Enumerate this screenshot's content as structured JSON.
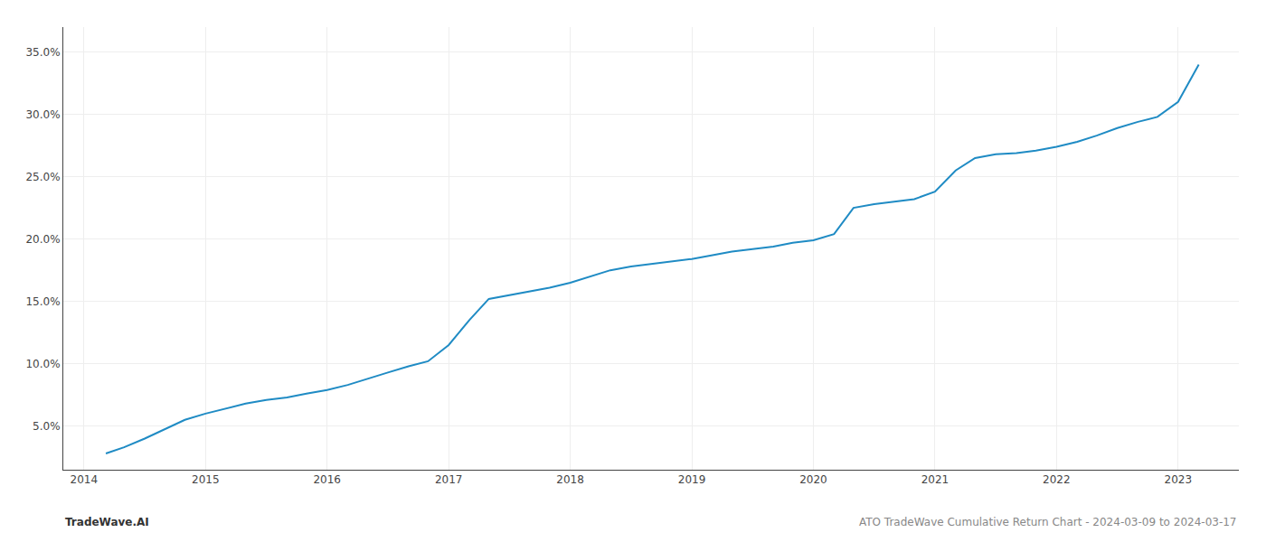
{
  "chart_data": {
    "type": "line",
    "x": [
      2014.18,
      2014.33,
      2014.5,
      2014.67,
      2014.83,
      2015.0,
      2015.17,
      2015.33,
      2015.5,
      2015.67,
      2015.83,
      2016.0,
      2016.17,
      2016.33,
      2016.5,
      2016.67,
      2016.83,
      2017.0,
      2017.17,
      2017.33,
      2017.5,
      2017.67,
      2017.83,
      2018.0,
      2018.17,
      2018.33,
      2018.5,
      2018.67,
      2018.83,
      2019.0,
      2019.17,
      2019.33,
      2019.5,
      2019.67,
      2019.83,
      2020.0,
      2020.17,
      2020.33,
      2020.5,
      2020.67,
      2020.83,
      2021.0,
      2021.17,
      2021.33,
      2021.5,
      2021.67,
      2021.83,
      2022.0,
      2022.17,
      2022.33,
      2022.5,
      2022.67,
      2022.83,
      2023.0,
      2023.17
    ],
    "values": [
      2.8,
      3.3,
      4.0,
      4.8,
      5.5,
      6.0,
      6.4,
      6.8,
      7.1,
      7.3,
      7.6,
      7.9,
      8.3,
      8.8,
      9.3,
      9.8,
      10.2,
      11.5,
      13.5,
      15.2,
      15.5,
      15.8,
      16.1,
      16.5,
      17.0,
      17.5,
      17.8,
      18.0,
      18.2,
      18.4,
      18.7,
      19.0,
      19.2,
      19.4,
      19.7,
      19.9,
      20.4,
      22.5,
      22.8,
      23.0,
      23.2,
      23.8,
      25.5,
      26.5,
      26.8,
      26.9,
      27.1,
      27.4,
      27.8,
      28.3,
      28.9,
      29.4,
      29.8,
      31.0,
      34.0
    ],
    "color": "#1f8bc4",
    "xlim": [
      2013.83,
      2023.5
    ],
    "ylim": [
      1.5,
      37.0
    ],
    "xticks": [
      2014,
      2015,
      2016,
      2017,
      2018,
      2019,
      2020,
      2021,
      2022,
      2023
    ],
    "yticks": [
      {
        "value": 5.0,
        "label": "5.0%"
      },
      {
        "value": 10.0,
        "label": "10.0%"
      },
      {
        "value": 15.0,
        "label": "15.0%"
      },
      {
        "value": 20.0,
        "label": "20.0%"
      },
      {
        "value": 25.0,
        "label": "25.0%"
      },
      {
        "value": 30.0,
        "label": "30.0%"
      },
      {
        "value": 35.0,
        "label": "35.0%"
      }
    ],
    "grid": true,
    "annotations": [
      "TradeWave.AI",
      "ATO TradeWave Cumulative Return Chart - 2024-03-09 to 2024-03-17"
    ]
  }
}
